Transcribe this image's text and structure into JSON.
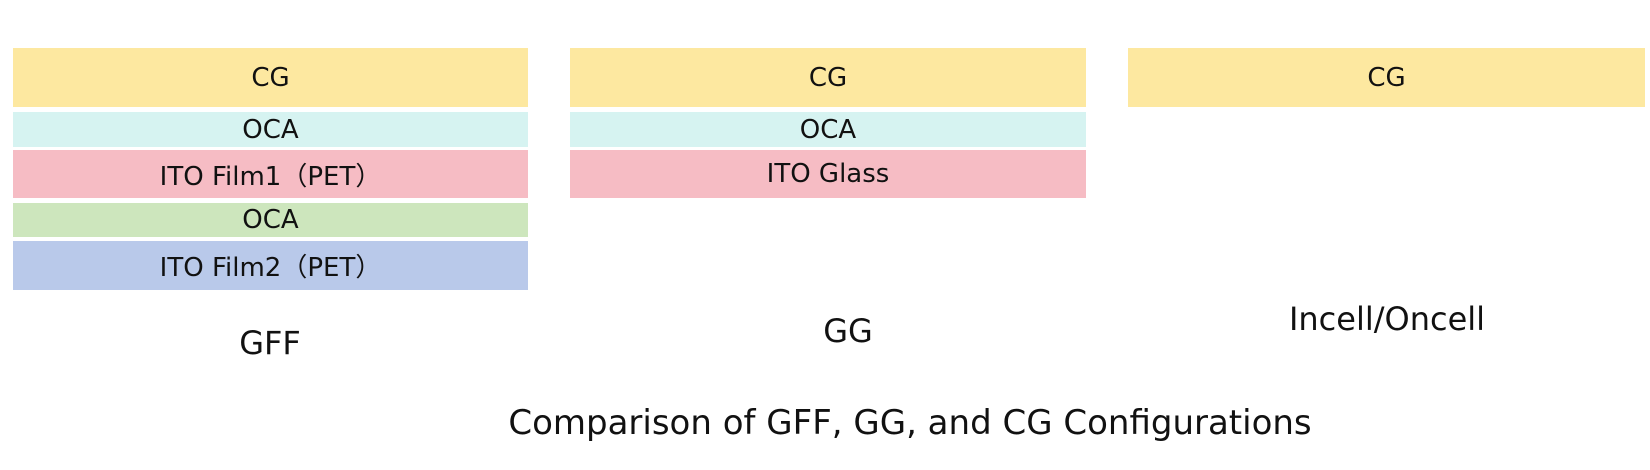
{
  "columns": [
    {
      "layers": [
        "CG",
        "OCA",
        "ITO Film1（PET）",
        "OCA",
        "ITO Film2（PET）"
      ],
      "name": "GFF"
    },
    {
      "layers": [
        "CG",
        "OCA",
        "ITO Glass"
      ],
      "name": "GG"
    },
    {
      "layers": [
        "CG"
      ],
      "name": "Incell/Oncell"
    }
  ],
  "caption": "Comparison of GFF, GG, and CG Configurations"
}
